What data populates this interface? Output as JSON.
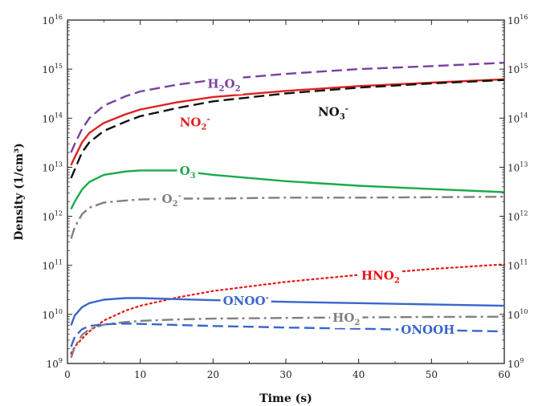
{
  "chart_data": {
    "type": "line",
    "xlabel": "Time (s)",
    "ylabel": "Density (1/cm³)",
    "xlim": [
      0,
      60
    ],
    "ylim_log10": [
      9,
      16
    ],
    "y_scale": "log",
    "grid": false,
    "x_ticks": [
      "0",
      "10",
      "20",
      "30",
      "40",
      "50",
      "60"
    ],
    "y_ticks": [
      {
        "base": "10",
        "exp": "9"
      },
      {
        "base": "10",
        "exp": "10"
      },
      {
        "base": "10",
        "exp": "11"
      },
      {
        "base": "10",
        "exp": "12"
      },
      {
        "base": "10",
        "exp": "13"
      },
      {
        "base": "10",
        "exp": "14"
      },
      {
        "base": "10",
        "exp": "15"
      },
      {
        "base": "10",
        "exp": "16"
      }
    ],
    "series": [
      {
        "name": "H₂O₂",
        "color": "#7b3fa0",
        "dash": "dashed",
        "x": [
          0.5,
          1,
          2,
          3,
          5,
          8,
          10,
          15,
          20,
          30,
          40,
          50,
          60
        ],
        "y": [
          20000000000000.0,
          30000000000000.0,
          60000000000000.0,
          100000000000000.0,
          180000000000000.0,
          280000000000000.0,
          350000000000000.0,
          480000000000000.0,
          600000000000000.0,
          800000000000000.0,
          1000000000000000.0,
          1150000000000000.0,
          1350000000000000.0
        ]
      },
      {
        "name": "NO₂⁻",
        "color": "#e02020",
        "dash": "solid",
        "x": [
          0.5,
          1,
          2,
          3,
          5,
          8,
          10,
          15,
          20,
          30,
          40,
          50,
          60
        ],
        "y": [
          11000000000000.0,
          16000000000000.0,
          32000000000000.0,
          50000000000000.0,
          80000000000000.0,
          120000000000000.0,
          150000000000000.0,
          210000000000000.0,
          270000000000000.0,
          360000000000000.0,
          450000000000000.0,
          530000000000000.0,
          620000000000000.0
        ]
      },
      {
        "name": "NO₃⁻",
        "color": "#111111",
        "dash": "dashed",
        "x": [
          0.5,
          1,
          2,
          3,
          5,
          8,
          10,
          15,
          20,
          30,
          40,
          50,
          60
        ],
        "y": [
          6000000000000.0,
          9000000000000.0,
          20000000000000.0,
          32000000000000.0,
          55000000000000.0,
          85000000000000.0,
          110000000000000.0,
          160000000000000.0,
          220000000000000.0,
          320000000000000.0,
          420000000000000.0,
          510000000000000.0,
          600000000000000.0
        ]
      },
      {
        "name": "O₃",
        "color": "#1aaa4a",
        "dash": "solid",
        "x": [
          0.5,
          1,
          2,
          3,
          5,
          8,
          10,
          15,
          20,
          30,
          40,
          50,
          60
        ],
        "y": [
          1400000000000.0,
          2000000000000.0,
          3500000000000.0,
          5000000000000.0,
          7000000000000.0,
          8200000000000.0,
          8600000000000.0,
          8600000000000.0,
          7000000000000.0,
          5200000000000.0,
          4200000000000.0,
          3600000000000.0,
          3100000000000.0
        ]
      },
      {
        "name": "O₂⁻",
        "color": "#808080",
        "dash": "dashdot",
        "x": [
          0.5,
          1,
          2,
          3,
          5,
          8,
          10,
          15,
          20,
          30,
          40,
          50,
          60
        ],
        "y": [
          350000000000.0,
          600000000000.0,
          1100000000000.0,
          1500000000000.0,
          1900000000000.0,
          2100000000000.0,
          2200000000000.0,
          2300000000000.0,
          2300000000000.0,
          2400000000000.0,
          2400000000000.0,
          2450000000000.0,
          2500000000000.0
        ]
      },
      {
        "name": "HNO₂",
        "color": "#ee1111",
        "dash": "dotted",
        "x": [
          0.5,
          1,
          2,
          3,
          5,
          8,
          10,
          15,
          20,
          30,
          40,
          50,
          60
        ],
        "y": [
          1600000000.0,
          2200000000.0,
          3200000000.0,
          4500000000.0,
          7500000000.0,
          12000000000.0,
          15000000000.0,
          22000000000.0,
          30000000000.0,
          46000000000.0,
          64000000000.0,
          84000000000.0,
          105000000000.0
        ]
      },
      {
        "name": "ONOO⁻",
        "color": "#3a66cc",
        "dash": "solid",
        "x": [
          0.5,
          1,
          2,
          3,
          5,
          8,
          10,
          15,
          20,
          30,
          40,
          50,
          60
        ],
        "y": [
          6000000000.0,
          9500000000.0,
          14000000000.0,
          17000000000.0,
          20000000000.0,
          21500000000.0,
          21500000000.0,
          20500000000.0,
          19500000000.0,
          18000000000.0,
          17000000000.0,
          16000000000.0,
          15000000000.0
        ]
      },
      {
        "name": "HO₂",
        "color": "#808080",
        "dash": "dashdot",
        "x": [
          0.5,
          1,
          2,
          3,
          5,
          8,
          10,
          15,
          20,
          30,
          40,
          50,
          60
        ],
        "y": [
          1300000000.0,
          2200000000.0,
          3800000000.0,
          5000000000.0,
          6200000000.0,
          7000000000.0,
          7400000000.0,
          7900000000.0,
          8200000000.0,
          8500000000.0,
          8700000000.0,
          8900000000.0,
          9000000000.0
        ]
      },
      {
        "name": "ONOOH",
        "color": "#3a66cc",
        "dash": "dashed",
        "x": [
          0.5,
          1,
          2,
          3,
          5,
          8,
          10,
          15,
          20,
          30,
          40,
          50,
          60
        ],
        "y": [
          2200000000.0,
          3500000000.0,
          5000000000.0,
          5800000000.0,
          6300000000.0,
          6500000000.0,
          6400000000.0,
          6100000000.0,
          5800000000.0,
          5400000000.0,
          5100000000.0,
          4800000000.0,
          4500000000.0
        ]
      }
    ],
    "annotations": [
      {
        "series": 0,
        "base": "H",
        "sub1": "2",
        "mid": "O",
        "sub2": "2",
        "sup": "",
        "color": "#7b3fa0",
        "at": [
          21.5,
          500000000000000.0
        ],
        "bg": true
      },
      {
        "series": 1,
        "base": "NO",
        "sub1": "2",
        "mid": "",
        "sub2": "",
        "sup": "-",
        "color": "#e02020",
        "at": [
          17.5,
          82000000000000.0
        ],
        "bg": true
      },
      {
        "series": 2,
        "base": "NO",
        "sub1": "3",
        "mid": "",
        "sub2": "",
        "sup": "-",
        "color": "#111111",
        "at": [
          36.5,
          135000000000000.0
        ],
        "bg": true
      },
      {
        "series": 3,
        "base": "O",
        "sub1": "3",
        "mid": "",
        "sub2": "",
        "sup": "",
        "color": "#1aaa4a",
        "at": [
          16.5,
          8400000000000.0
        ],
        "bg": true
      },
      {
        "series": 4,
        "base": "O",
        "sub1": "2",
        "mid": "",
        "sub2": "",
        "sup": "-",
        "color": "#808080",
        "at": [
          14.3,
          2250000000000.0
        ],
        "bg": true
      },
      {
        "series": 5,
        "base": "HNO",
        "sub1": "2",
        "mid": "",
        "sub2": "",
        "sup": "",
        "color": "#ee1111",
        "at": [
          43.0,
          62000000000.0
        ],
        "bg": true
      },
      {
        "series": 6,
        "base": "ONOO",
        "sub1": "",
        "mid": "",
        "sub2": "",
        "sup": "-",
        "color": "#3a66cc",
        "at": [
          24.5,
          19000000000.0
        ],
        "bg": true
      },
      {
        "series": 7,
        "base": "HO",
        "sub1": "2",
        "mid": "",
        "sub2": "",
        "sup": "",
        "color": "#808080",
        "at": [
          38.3,
          8600000000.0
        ],
        "bg": true
      },
      {
        "series": 8,
        "base": "ONOOH",
        "sub1": "",
        "mid": "",
        "sub2": "",
        "sup": "",
        "color": "#3a66cc",
        "at": [
          49.5,
          4900000000.0
        ],
        "bg": true
      }
    ]
  }
}
